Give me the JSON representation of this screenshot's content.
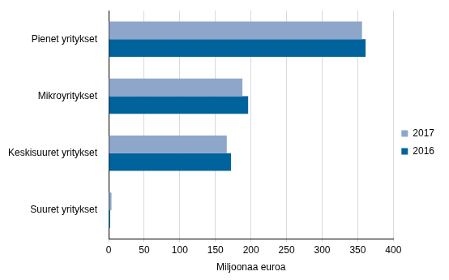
{
  "chart_data": {
    "type": "bar",
    "orientation": "horizontal",
    "categories": [
      "Pienet yritykset",
      "Mikroyritykset",
      "Keskisuuret yritykset",
      "Suuret yritykset"
    ],
    "series": [
      {
        "name": "2017",
        "color": "#8ea6ca",
        "values": [
          356,
          188,
          166,
          4
        ]
      },
      {
        "name": "2016",
        "color": "#00639b",
        "values": [
          361,
          196,
          172,
          2
        ]
      }
    ],
    "x_label": "Miljoonaa euroa",
    "xlim": [
      0,
      400
    ],
    "xticks": [
      0,
      50,
      100,
      150,
      200,
      250,
      300,
      350,
      400
    ],
    "grid": true,
    "legend": "right"
  }
}
